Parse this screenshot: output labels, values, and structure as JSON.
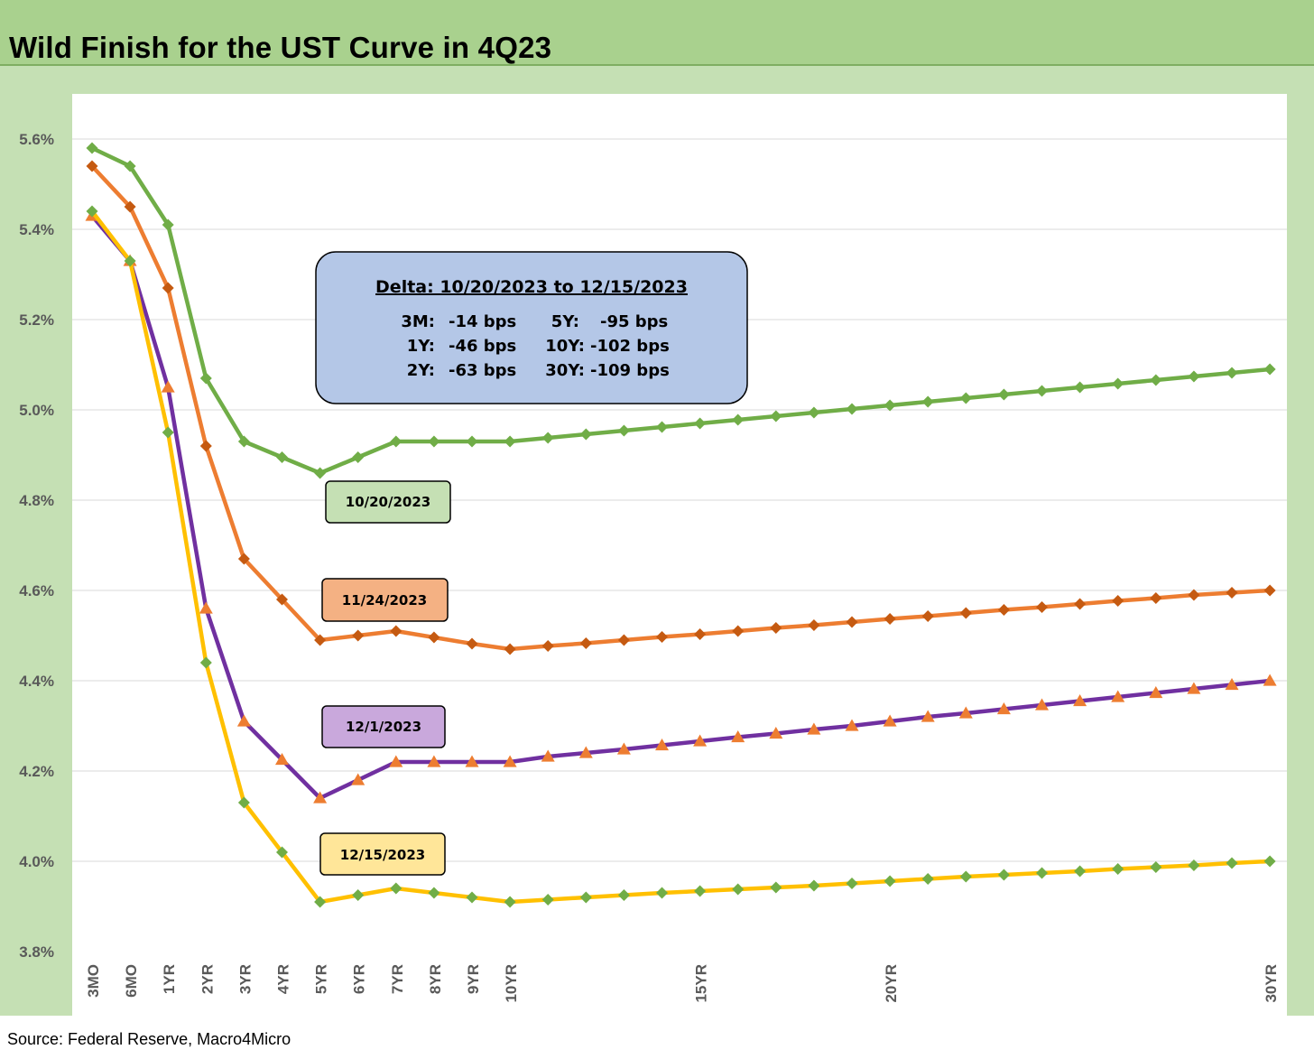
{
  "title": "Wild Finish for the UST Curve in 4Q23",
  "source": "Source: Federal Reserve, Macro4Micro",
  "colors": {
    "title_bar": "#a9d18e",
    "frame": "#c5e0b4",
    "green": "#70ad47",
    "orange": "#ed7d31",
    "orange_marker": "#c55a11",
    "purple": "#7030a0",
    "yellow": "#ffc000",
    "delta_box": "#b4c7e7"
  },
  "delta_box": {
    "title": "Delta: 10/20/2023 to 12/15/2023",
    "rows": [
      {
        "left_label": "3M:",
        "left_value": "-14 bps",
        "right_label": "5Y:",
        "right_value": "-95 bps"
      },
      {
        "left_label": "1Y:",
        "left_value": "-46 bps",
        "right_label": "10Y:",
        "right_value": "-102 bps"
      },
      {
        "left_label": "2Y:",
        "left_value": "-63 bps",
        "right_label": "30Y:",
        "right_value": "-109 bps"
      }
    ]
  },
  "chart_data": {
    "type": "line",
    "title": "Wild Finish for the UST Curve in 4Q23",
    "ylim": [
      3.8,
      5.6
    ],
    "y_ticks": [
      "3.8%",
      "4.0%",
      "4.2%",
      "4.4%",
      "4.6%",
      "4.8%",
      "5.0%",
      "5.2%",
      "5.4%",
      "5.6%"
    ],
    "y_tick_values": [
      3.8,
      4.0,
      4.2,
      4.4,
      4.6,
      4.8,
      5.0,
      5.2,
      5.4,
      5.6
    ],
    "x_tick_labels": [
      "3MO",
      "6MO",
      "1YR",
      "2YR",
      "3YR",
      "4YR",
      "5YR",
      "6YR",
      "7YR",
      "8YR",
      "9YR",
      "10YR",
      "15YR",
      "20YR",
      "30YR"
    ],
    "grid": "horizontal",
    "series": [
      {
        "name": "10/20/2023",
        "color": "#70ad47",
        "marker": "diamond",
        "marker_color": "#70ad47",
        "values": [
          5.58,
          5.54,
          5.41,
          5.07,
          4.93,
          4.895,
          4.86,
          4.895,
          4.93,
          4.93,
          4.93,
          4.93,
          4.938,
          4.946,
          4.954,
          4.962,
          4.97,
          4.978,
          4.986,
          4.994,
          5.002,
          5.01,
          5.018,
          5.026,
          5.034,
          5.042,
          5.05,
          5.058,
          5.066,
          5.074,
          5.082,
          5.09
        ]
      },
      {
        "name": "11/24/2023",
        "color": "#ed7d31",
        "marker": "diamond",
        "marker_color": "#c55a11",
        "values": [
          5.54,
          5.45,
          5.27,
          4.92,
          4.67,
          4.58,
          4.49,
          4.5,
          4.51,
          4.496,
          4.482,
          4.47,
          4.477,
          4.483,
          4.49,
          4.497,
          4.503,
          4.51,
          4.517,
          4.523,
          4.53,
          4.537,
          4.543,
          4.55,
          4.557,
          4.563,
          4.57,
          4.577,
          4.583,
          4.59,
          4.595,
          4.6
        ]
      },
      {
        "name": "12/1/2023",
        "color": "#7030a0",
        "marker": "triangle",
        "marker_color": "#ed7d31",
        "values": [
          5.43,
          5.33,
          5.05,
          4.56,
          4.31,
          4.225,
          4.14,
          4.18,
          4.22,
          4.22,
          4.22,
          4.22,
          4.232,
          4.24,
          4.248,
          4.257,
          4.266,
          4.275,
          4.283,
          4.292,
          4.3,
          4.31,
          4.32,
          4.328,
          4.337,
          4.346,
          4.355,
          4.364,
          4.373,
          4.382,
          4.391,
          4.4
        ]
      },
      {
        "name": "12/15/2023",
        "color": "#ffc000",
        "marker": "diamond",
        "marker_color": "#70ad47",
        "values": [
          5.44,
          5.33,
          4.95,
          4.44,
          4.13,
          4.02,
          3.91,
          3.925,
          3.94,
          3.93,
          3.92,
          3.91,
          3.915,
          3.92,
          3.925,
          3.93,
          3.934,
          3.938,
          3.942,
          3.946,
          3.951,
          3.956,
          3.961,
          3.966,
          3.97,
          3.974,
          3.978,
          3.983,
          3.987,
          3.991,
          3.996,
          4.0
        ]
      }
    ]
  }
}
